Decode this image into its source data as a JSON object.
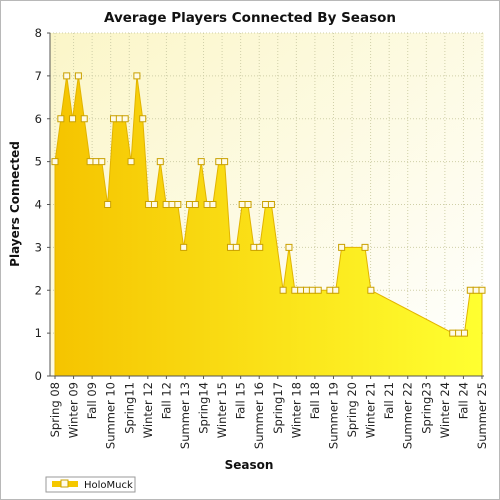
{
  "chart_data": {
    "type": "area",
    "title": "Average Players Connected By Season",
    "xlabel": "Season",
    "ylabel": "Players Connected",
    "ylim": [
      0,
      8
    ],
    "yticks": [
      0,
      1,
      2,
      3,
      4,
      5,
      6,
      7,
      8
    ],
    "xtick_labels": [
      "Spring 08",
      "Winter 09",
      "Fall 09",
      "Summer 10",
      "Spring11",
      "Winter 12",
      "Fall 12",
      "Summer 13",
      "Spring14",
      "Winter 15",
      "Fall 15",
      "Summer 16",
      "Spring17",
      "Winter 18",
      "Fall 18",
      "Summer 19",
      "Spring 20",
      "Winter 21",
      "Fall 21",
      "Summer 22",
      "Spring23",
      "Winter 24",
      "Fall 24",
      "Summer 25"
    ],
    "grid": true,
    "legend_position": "bottom-left",
    "colors": {
      "area_top": "#f5c800",
      "area_bottom": "#ffff30",
      "line": "#e6b800",
      "marker_fill": "#fffbe6",
      "marker_stroke": "#c9a000",
      "plot_bg": "#ffffe0",
      "grid": "#d8d8b8"
    },
    "series": [
      {
        "name": "HoloMuck",
        "values": [
          5,
          6,
          7,
          6,
          7,
          6,
          5,
          5,
          5,
          4,
          6,
          6,
          6,
          5,
          7,
          6,
          4,
          4,
          5,
          4,
          4,
          4,
          3,
          4,
          4,
          5,
          4,
          4,
          5,
          5,
          3,
          3,
          4,
          4,
          3,
          3,
          4,
          4,
          null,
          2,
          3,
          2,
          2,
          2,
          2,
          2,
          null,
          2,
          2,
          3,
          null,
          null,
          null,
          3,
          2,
          null,
          null,
          null,
          null,
          null,
          null,
          null,
          null,
          null,
          null,
          null,
          null,
          null,
          1,
          1,
          1,
          2,
          2,
          2
        ]
      }
    ]
  },
  "legend": {
    "label": "HoloMuck"
  }
}
